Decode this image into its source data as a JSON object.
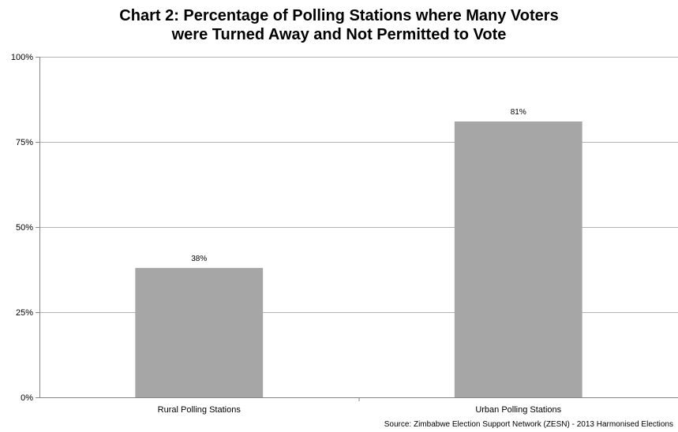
{
  "chart_data": {
    "type": "bar",
    "title_lines": [
      "Chart 2: Percentage of Polling Stations where Many Voters",
      "were Turned Away and Not Permitted to Vote"
    ],
    "categories": [
      "Rural Polling Stations",
      "Urban Polling Stations"
    ],
    "values": [
      38,
      81
    ],
    "data_labels": [
      "38%",
      "81%"
    ],
    "ylim": [
      0,
      100
    ],
    "yticks": [
      0,
      25,
      50,
      75,
      100
    ],
    "ytick_labels": [
      "0%",
      "25%",
      "50%",
      "75%",
      "100%"
    ],
    "grid": true,
    "legend": "none",
    "bar_color": "#a6a6a6",
    "grid_color": "#b3b3b3",
    "source": "Source: Zimbabwe Election Support Network (ZESN) - 2013 Harmonised Elections"
  }
}
